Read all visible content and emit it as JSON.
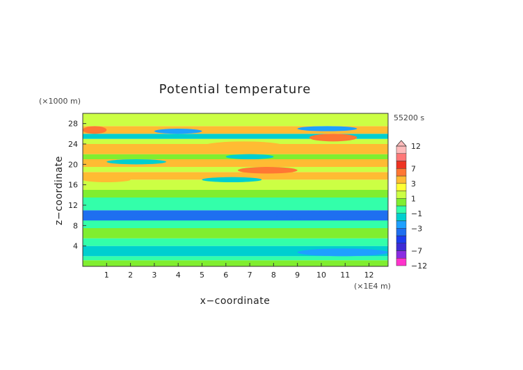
{
  "chart_data": {
    "type": "heatmap",
    "title": "Potential temperature",
    "xlabel": "x−coordinate",
    "ylabel": "z−coordinate",
    "x_unit": "(×1E4 m)",
    "y_unit": "(×1000 m)",
    "time_label": "55200 s",
    "xlim": [
      0,
      12.8
    ],
    "ylim": [
      0,
      30
    ],
    "x_ticks": [
      "1",
      "2",
      "3",
      "4",
      "5",
      "6",
      "7",
      "8",
      "9",
      "10",
      "11",
      "12"
    ],
    "y_ticks": [
      "4",
      "8",
      "12",
      "16",
      "20",
      "24",
      "28"
    ],
    "colorbar": {
      "levels": [
        -12,
        -9,
        -7,
        -5,
        -4,
        -3,
        -2,
        -1,
        0,
        1,
        2,
        3,
        5,
        7,
        9,
        12
      ],
      "labels": [
        "12",
        "7",
        "3",
        "1",
        "−1",
        "−3",
        "−7",
        "−12"
      ],
      "colors": [
        "#ff33cc",
        "#8a2be2",
        "#3d2bd6",
        "#1a3cf0",
        "#1e6ff0",
        "#1ea0ff",
        "#00cfcf",
        "#33ffaa",
        "#80ee30",
        "#ccff44",
        "#ffff33",
        "#ffbb33",
        "#ff7733",
        "#ee3322",
        "#ff7777",
        "#ffbbbb"
      ]
    },
    "bands": [
      {
        "z_min": 0.0,
        "z_max": 1.2,
        "value": 0.3
      },
      {
        "z_min": 1.2,
        "z_max": 2.0,
        "value": -0.3
      },
      {
        "z_min": 2.0,
        "z_max": 4.0,
        "value": -2.0
      },
      {
        "z_min": 4.0,
        "z_max": 5.5,
        "value": -0.7
      },
      {
        "z_min": 5.5,
        "z_max": 7.5,
        "value": 0.3
      },
      {
        "z_min": 7.5,
        "z_max": 9.0,
        "value": -0.6
      },
      {
        "z_min": 9.0,
        "z_max": 11.0,
        "value": -3.2
      },
      {
        "z_min": 11.0,
        "z_max": 13.5,
        "value": -0.7
      },
      {
        "z_min": 13.5,
        "z_max": 15.0,
        "value": 0.5
      },
      {
        "z_min": 15.0,
        "z_max": 17.0,
        "value": 1.5
      },
      {
        "z_min": 17.0,
        "z_max": 18.5,
        "value": 3.5
      },
      {
        "z_min": 18.5,
        "z_max": 19.5,
        "value": 1.5
      },
      {
        "z_min": 19.5,
        "z_max": 21.0,
        "value": 3.5
      },
      {
        "z_min": 21.0,
        "z_max": 22.0,
        "value": 0.5
      },
      {
        "z_min": 22.0,
        "z_max": 24.0,
        "value": 3.8
      },
      {
        "z_min": 24.0,
        "z_max": 25.0,
        "value": 1.5
      },
      {
        "z_min": 25.0,
        "z_max": 26.0,
        "value": -2.0
      },
      {
        "z_min": 26.0,
        "z_max": 27.5,
        "value": 3.5
      },
      {
        "z_min": 27.5,
        "z_max": 30.0,
        "value": 1.5
      }
    ],
    "blobs": [
      {
        "x_min": 8.0,
        "x_max": 12.0,
        "z_min": 9.2,
        "z_max": 10.8,
        "value": -3.5
      },
      {
        "x_min": 0.0,
        "x_max": 2.5,
        "z_min": 9.5,
        "z_max": 10.5,
        "value": -3.2
      },
      {
        "x_min": 5.0,
        "x_max": 8.5,
        "z_min": 22.5,
        "z_max": 24.5,
        "value": 4.5
      },
      {
        "x_min": 9.5,
        "x_max": 11.5,
        "z_min": 24.5,
        "z_max": 26.0,
        "value": 6.0
      },
      {
        "x_min": 6.5,
        "x_max": 9.0,
        "z_min": 18.2,
        "z_max": 19.5,
        "value": 5.0
      },
      {
        "x_min": 0.0,
        "x_max": 1.0,
        "z_min": 26.0,
        "z_max": 27.5,
        "value": 6.0
      },
      {
        "x_min": 3.0,
        "x_max": 5.0,
        "z_min": 26.0,
        "z_max": 27.0,
        "value": -2.5
      },
      {
        "x_min": 9.0,
        "x_max": 11.5,
        "z_min": 26.5,
        "z_max": 27.5,
        "value": -2.5
      },
      {
        "x_min": 0.0,
        "x_max": 2.0,
        "z_min": 16.5,
        "z_max": 17.5,
        "value": 3.5
      },
      {
        "x_min": 5.0,
        "x_max": 7.5,
        "z_min": 16.5,
        "z_max": 17.5,
        "value": -2.0
      },
      {
        "x_min": 9.0,
        "x_max": 12.8,
        "z_min": 2.0,
        "z_max": 3.5,
        "value": -2.5
      },
      {
        "x_min": 1.0,
        "x_max": 3.5,
        "z_min": 20.0,
        "z_max": 21.0,
        "value": -2.0
      },
      {
        "x_min": 6.0,
        "x_max": 8.0,
        "z_min": 21.0,
        "z_max": 22.0,
        "value": -2.0
      }
    ]
  }
}
